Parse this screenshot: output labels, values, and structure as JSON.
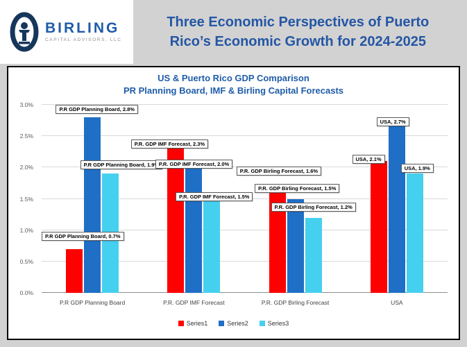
{
  "header": {
    "brand": {
      "name": "BIRLING",
      "subtitle": "CAPITAL ADVISORS, LLC"
    },
    "title_line1": "Three Economic Perspectives of Puerto",
    "title_line2": "Rico’s Economic Growth for 2024-2025"
  },
  "chart": {
    "title_line1": "US & Puerto Rico GDP Comparison",
    "title_line2": "PR Planning Board, IMF & Birling Capital Forecasts"
  },
  "chart_data": {
    "type": "bar",
    "title": "US & Puerto Rico GDP Comparison — PR Planning Board, IMF & Birling Capital Forecasts",
    "categories": [
      "P.R GDP Planning Board",
      "P.R. GDP IMF Forecast",
      "P.R. GDP Birling Forecast",
      "USA"
    ],
    "series": [
      {
        "name": "Series1",
        "color": "#ff0000",
        "values": [
          0.7,
          2.3,
          1.6,
          2.1
        ]
      },
      {
        "name": "Series2",
        "color": "#1f6fc6",
        "values": [
          2.8,
          2.0,
          1.5,
          2.7
        ]
      },
      {
        "name": "Series3",
        "color": "#45d0f0",
        "values": [
          1.9,
          1.5,
          1.2,
          1.9
        ]
      }
    ],
    "ylim": [
      0,
      3.0
    ],
    "ytick_step": 0.5,
    "ytick_labels": [
      "0.0%",
      "0.5%",
      "1.0%",
      "1.5%",
      "2.0%",
      "2.5%",
      "3.0%"
    ],
    "grid": true,
    "legend_position": "bottom",
    "annotations": [
      {
        "text": "P.R GDP Planning Board, 2.8%",
        "x": 3.5,
        "y": 0
      },
      {
        "text": "P.R GDP Planning Board, 1.9%",
        "x": 9.5,
        "y": 29.5
      },
      {
        "text": "P.R GDP Planning Board, 0.7%",
        "x": 0,
        "y": 67.5
      },
      {
        "text": "P.R. GDP IMF Forecast, 2.3%",
        "x": 22,
        "y": 18.5
      },
      {
        "text": "P.R. GDP IMF Forecast, 2.0%",
        "x": 28,
        "y": 29
      },
      {
        "text": "P.R. GDP IMF Forecast, 1.5%",
        "x": 33,
        "y": 46.5
      },
      {
        "text": "P.R. GDP Birling Forecast, 1.6%",
        "x": 48,
        "y": 33
      },
      {
        "text": "P.R. GDP Birling Forecast, 1.5%",
        "x": 52.5,
        "y": 42
      },
      {
        "text": "P.R. GDP Birling Forecast, 1.2%",
        "x": 56.5,
        "y": 52
      },
      {
        "text": "USA, 2.1%",
        "x": 76.5,
        "y": 26.5
      },
      {
        "text": "USA, 2.7%",
        "x": 82.5,
        "y": 6.5
      },
      {
        "text": "USA, 1.9%",
        "x": 88.5,
        "y": 31.5
      }
    ]
  }
}
